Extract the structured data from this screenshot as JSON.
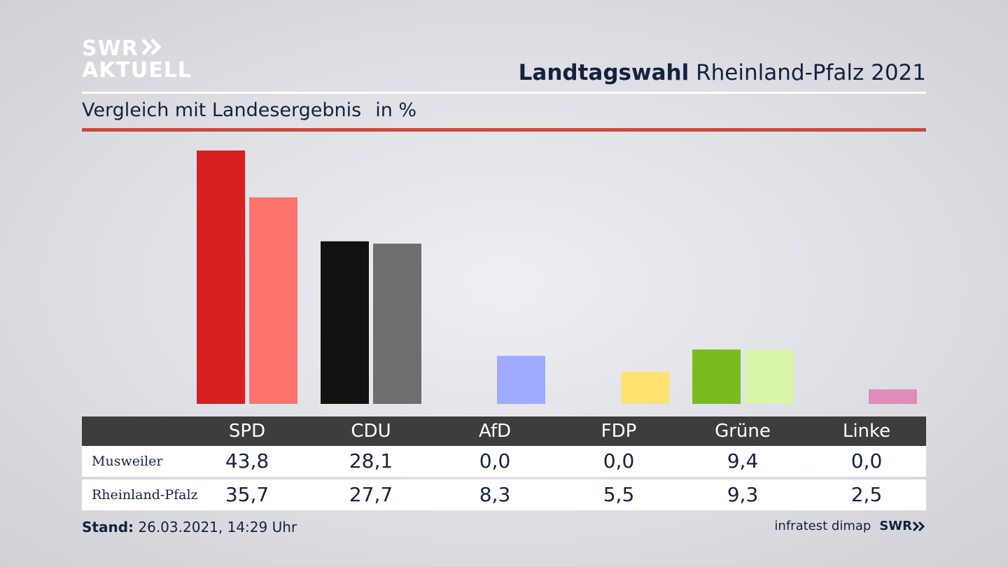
{
  "brand": {
    "line1": "SWR",
    "line2": "AKTUELL",
    "chevron_icon": "double-chevron-right-icon"
  },
  "header": {
    "title_bold": "Landtagswahl",
    "title_rest": "Rheinland-Pfalz 2021"
  },
  "subtitle": {
    "text": "Vergleich mit Landesergebnis",
    "unit": "in %"
  },
  "colors": {
    "accent_rule": "#c9493d",
    "table_header": "#3d3d3d"
  },
  "chart_data": {
    "type": "bar",
    "title": "Landtagswahl Rheinland-Pfalz 2021",
    "subtitle": "Vergleich mit Landesergebnis in %",
    "categories": [
      "SPD",
      "CDU",
      "AfD",
      "FDP",
      "Grüne",
      "Linke"
    ],
    "series": [
      {
        "name": "Musweiler",
        "values": [
          43.8,
          28.1,
          0.0,
          0.0,
          9.4,
          0.0
        ],
        "display": [
          "43,8",
          "28,1",
          "0,0",
          "0,0",
          "9,4",
          "0,0"
        ],
        "colors": [
          "#d71f20",
          "#111111",
          "#9eabff",
          "#ffe26f",
          "#79bc1d",
          "#e08bb8"
        ]
      },
      {
        "name": "Rheinland-Pfalz",
        "values": [
          35.7,
          27.7,
          8.3,
          5.5,
          9.3,
          2.5
        ],
        "display": [
          "35,7",
          "27,7",
          "8,3",
          "5,5",
          "9,3",
          "2,5"
        ],
        "colors": [
          "#ff736f",
          "#6f6e6e",
          "#9eabff",
          "#ffe26f",
          "#d7f6a8",
          "#e08bb8"
        ]
      }
    ],
    "ylim": [
      0,
      43.8
    ],
    "grid": false,
    "legend": "table-below"
  },
  "footer": {
    "stand_label": "Stand:",
    "stand_value": "26.03.2021, 14:29 Uhr",
    "source": "infratest dimap",
    "brand": "SWR"
  }
}
